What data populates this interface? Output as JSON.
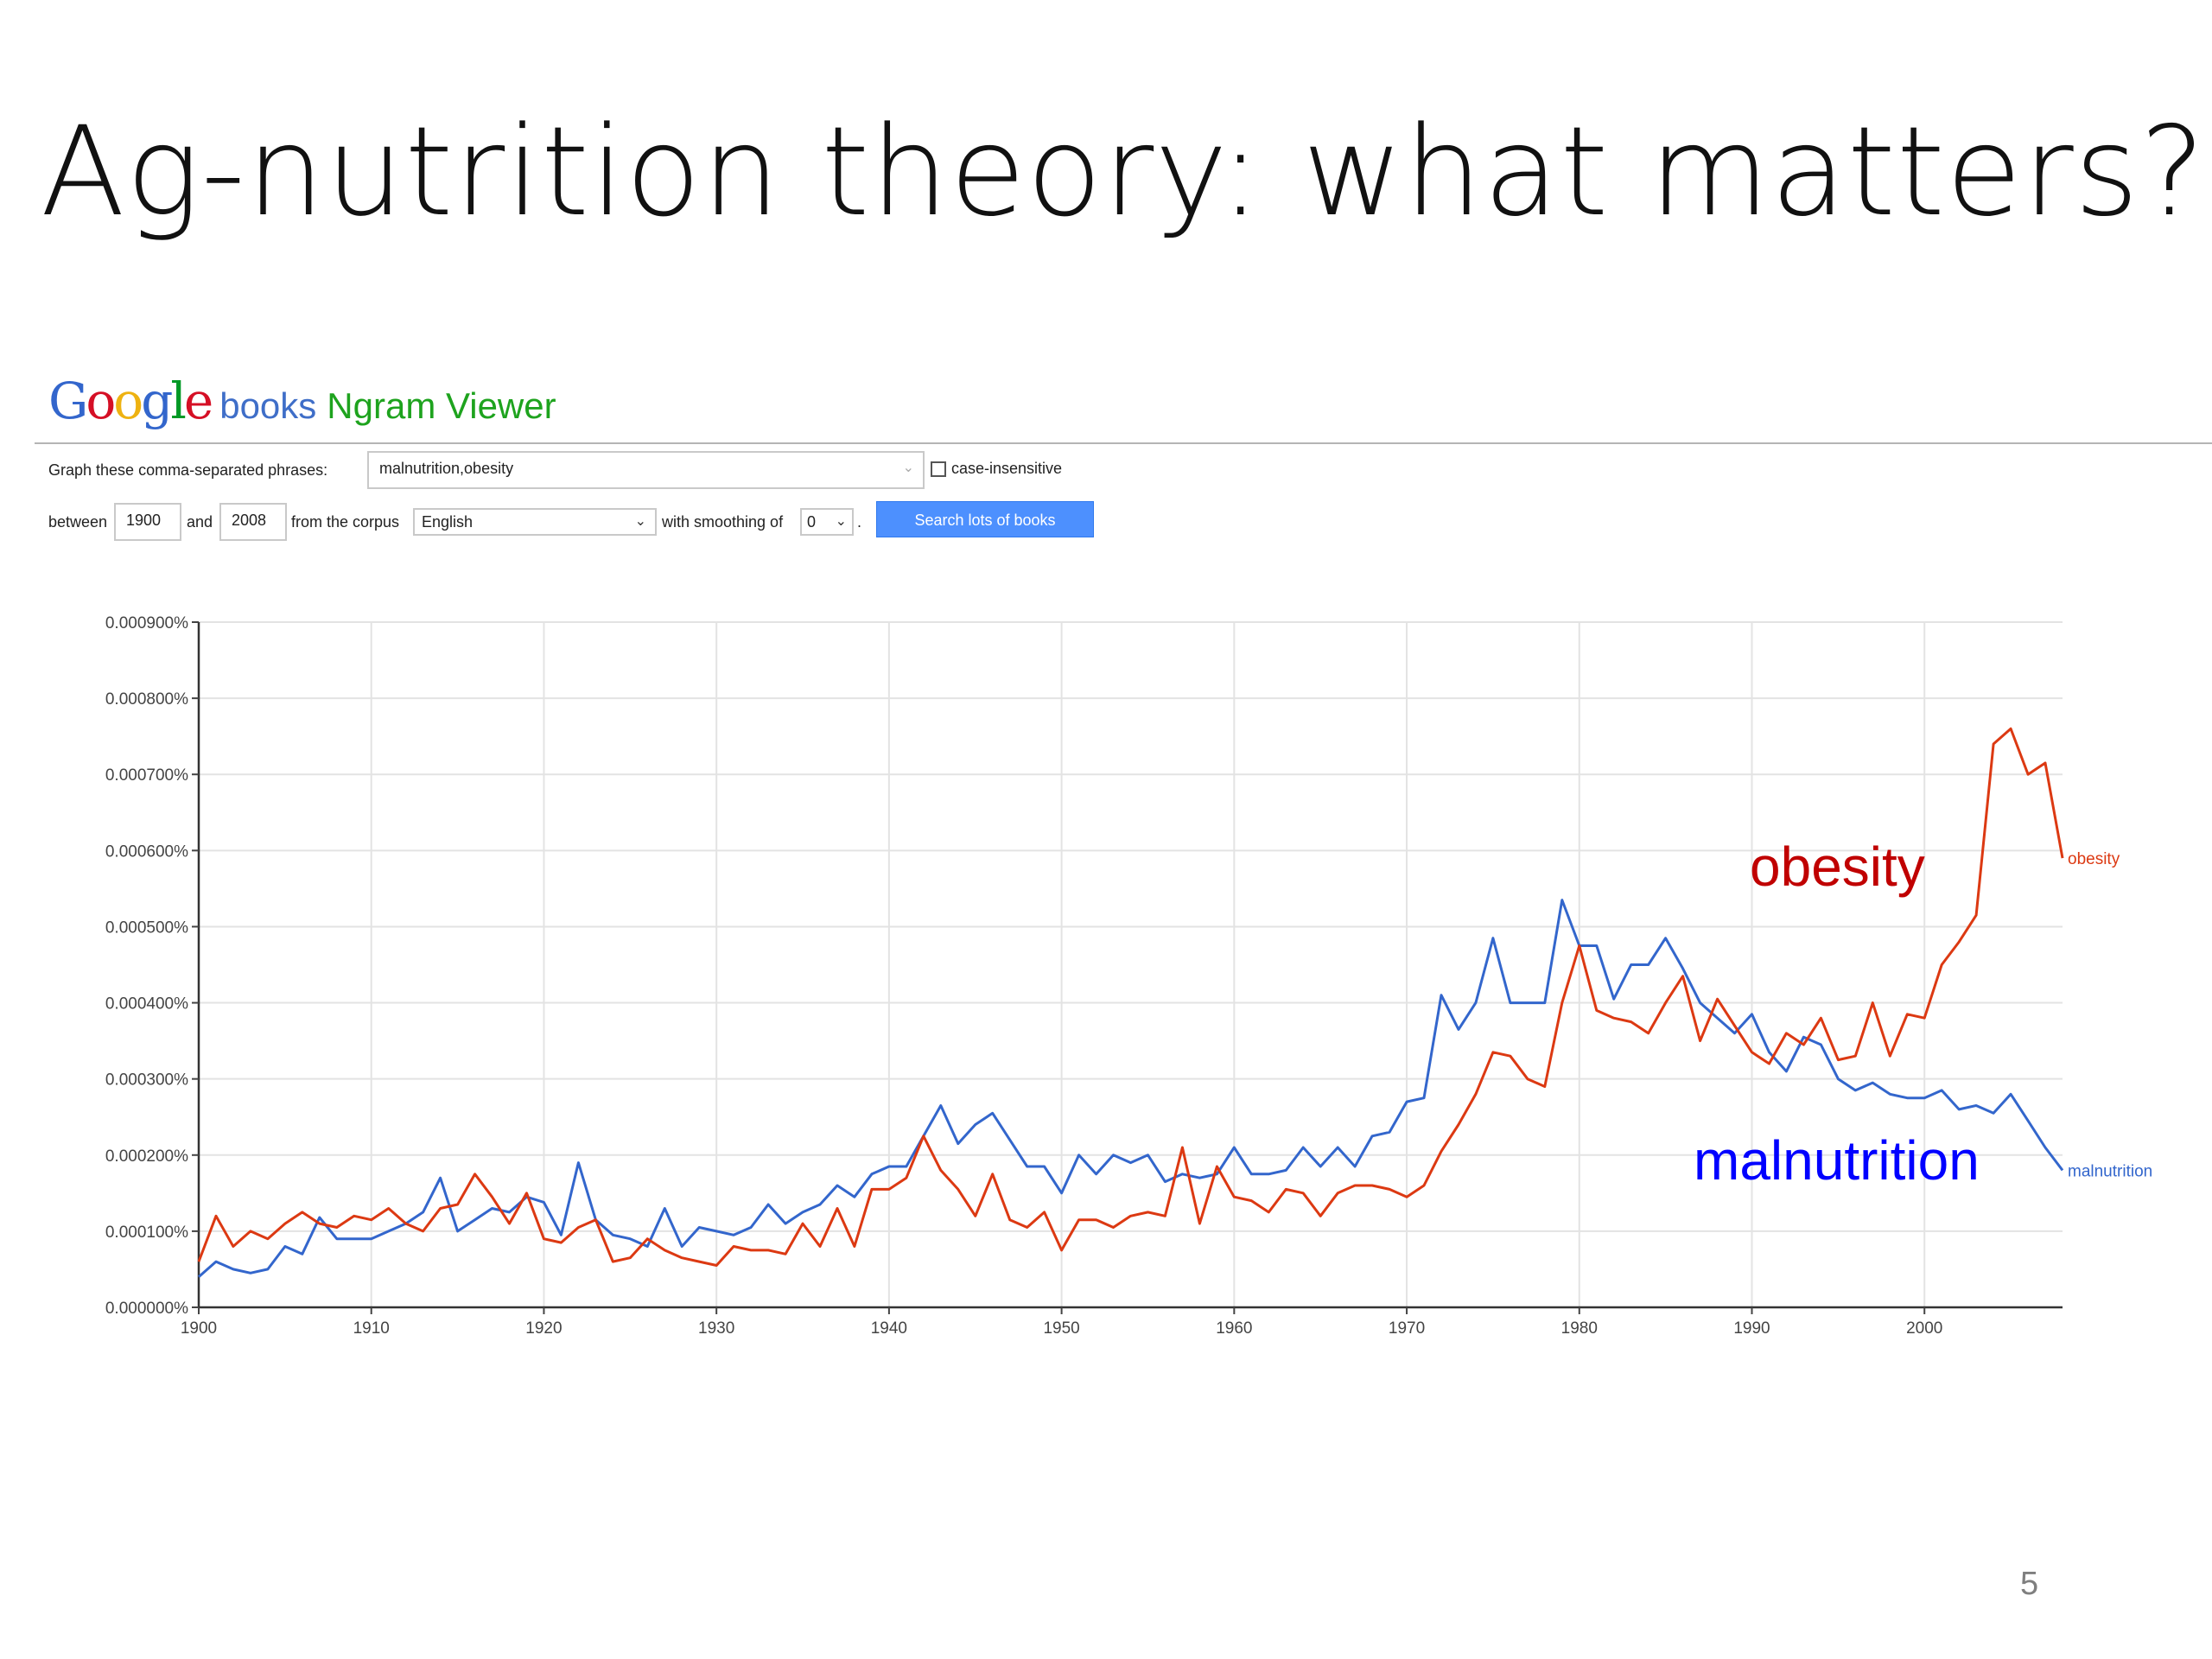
{
  "slide": {
    "title": "Ag-nutrition theory: what matters?",
    "page_number": "5"
  },
  "header": {
    "logo_google": [
      "G",
      "o",
      "o",
      "g",
      "l",
      "e"
    ],
    "logo_colors": [
      "#3366cc",
      "#d50f25",
      "#eeb211",
      "#3366cc",
      "#009925",
      "#d50f25"
    ],
    "logo_books": "books",
    "logo_ngram": "Ngram Viewer"
  },
  "form": {
    "phrases_label": "Graph these comma-separated phrases:",
    "phrases_value": "malnutrition,obesity",
    "case_insensitive_label": "case-insensitive",
    "between_label": "between",
    "start_year": "1900",
    "and_label": "and",
    "end_year": "2008",
    "corpus_label": "from the corpus",
    "corpus_value": "English",
    "smoothing_label": "with smoothing of",
    "smoothing_value": "0",
    "period": ".",
    "search_button": "Search lots of books"
  },
  "colors": {
    "obesity": "#dc3912",
    "malnutrition": "#3366cc",
    "obesity_annotation": "#c00000",
    "malnutrition_annotation": "#0000ff"
  },
  "chart_data": {
    "type": "line",
    "x_tick_labels": [
      "1900",
      "1910",
      "1920",
      "1930",
      "1940",
      "1950",
      "1960",
      "1970",
      "1980",
      "1990",
      "2000"
    ],
    "y_tick_labels": [
      "0.000000%",
      "0.000100%",
      "0.000200%",
      "0.000300%",
      "0.000400%",
      "0.000500%",
      "0.000600%",
      "0.000700%",
      "0.000800%",
      "0.000900%"
    ],
    "xlim": [
      1900,
      2008
    ],
    "ylim": [
      0,
      0.0009
    ],
    "y_unit": "%",
    "grid": true,
    "x": [
      1900,
      1901,
      1902,
      1903,
      1904,
      1905,
      1906,
      1907,
      1908,
      1909,
      1910,
      1911,
      1912,
      1913,
      1914,
      1915,
      1916,
      1917,
      1918,
      1919,
      1920,
      1921,
      1922,
      1923,
      1924,
      1925,
      1926,
      1927,
      1928,
      1929,
      1930,
      1931,
      1932,
      1933,
      1934,
      1935,
      1936,
      1937,
      1938,
      1939,
      1940,
      1941,
      1942,
      1943,
      1944,
      1945,
      1946,
      1947,
      1948,
      1949,
      1950,
      1951,
      1952,
      1953,
      1954,
      1955,
      1956,
      1957,
      1958,
      1959,
      1960,
      1961,
      1962,
      1963,
      1964,
      1965,
      1966,
      1967,
      1968,
      1969,
      1970,
      1971,
      1972,
      1973,
      1974,
      1975,
      1976,
      1977,
      1978,
      1979,
      1980,
      1981,
      1982,
      1983,
      1984,
      1985,
      1986,
      1987,
      1988,
      1989,
      1990,
      1991,
      1992,
      1993,
      1994,
      1995,
      1996,
      1997,
      1998,
      1999,
      2000,
      2001,
      2002,
      2003,
      2004,
      2005,
      2006,
      2007,
      2008
    ],
    "series": [
      {
        "name": "malnutrition",
        "values": [
          4e-05,
          6e-05,
          5e-05,
          4.5e-05,
          5e-05,
          8e-05,
          7e-05,
          0.000118,
          9e-05,
          9e-05,
          9e-05,
          0.0001,
          0.00011,
          0.000125,
          0.00017,
          0.0001,
          0.000115,
          0.00013,
          0.000125,
          0.000145,
          0.000138,
          9.5e-05,
          0.00019,
          0.000115,
          9.5e-05,
          9e-05,
          8e-05,
          0.00013,
          8e-05,
          0.000105,
          0.0001,
          9.5e-05,
          0.000105,
          0.000135,
          0.00011,
          0.000125,
          0.000135,
          0.00016,
          0.000145,
          0.000175,
          0.000185,
          0.000185,
          0.000225,
          0.000265,
          0.000215,
          0.00024,
          0.000255,
          0.00022,
          0.000185,
          0.000185,
          0.00015,
          0.0002,
          0.000175,
          0.0002,
          0.00019,
          0.0002,
          0.000165,
          0.000175,
          0.00017,
          0.000175,
          0.00021,
          0.000175,
          0.000175,
          0.00018,
          0.00021,
          0.000185,
          0.00021,
          0.000185,
          0.000225,
          0.00023,
          0.00027,
          0.000275,
          0.00041,
          0.000365,
          0.0004,
          0.000485,
          0.0004,
          0.0004,
          0.0004,
          0.000535,
          0.000475,
          0.000475,
          0.000405,
          0.00045,
          0.00045,
          0.000485,
          0.000445,
          0.0004,
          0.00038,
          0.00036,
          0.000385,
          0.000335,
          0.00031,
          0.000355,
          0.000345,
          0.0003,
          0.000285,
          0.000295,
          0.00028,
          0.000275,
          0.000275,
          0.000285,
          0.00026,
          0.000265,
          0.000255,
          0.00028,
          0.000245,
          0.00021,
          0.00018
        ]
      },
      {
        "name": "obesity",
        "values": [
          6e-05,
          0.00012,
          8e-05,
          0.0001,
          9e-05,
          0.00011,
          0.000125,
          0.00011,
          0.000105,
          0.00012,
          0.000115,
          0.00013,
          0.00011,
          0.0001,
          0.00013,
          0.000135,
          0.000175,
          0.000145,
          0.00011,
          0.00015,
          9e-05,
          8.5e-05,
          0.000105,
          0.000115,
          6e-05,
          6.5e-05,
          9e-05,
          7.5e-05,
          6.5e-05,
          6e-05,
          5.5e-05,
          8e-05,
          7.5e-05,
          7.5e-05,
          7e-05,
          0.00011,
          8e-05,
          0.00013,
          8e-05,
          0.000155,
          0.000155,
          0.00017,
          0.000225,
          0.00018,
          0.000155,
          0.00012,
          0.000175,
          0.000115,
          0.000105,
          0.000125,
          7.5e-05,
          0.000115,
          0.000115,
          0.000105,
          0.00012,
          0.000125,
          0.00012,
          0.00021,
          0.00011,
          0.000185,
          0.000145,
          0.00014,
          0.000125,
          0.000155,
          0.00015,
          0.00012,
          0.00015,
          0.00016,
          0.00016,
          0.000155,
          0.000145,
          0.00016,
          0.000205,
          0.00024,
          0.00028,
          0.000335,
          0.00033,
          0.0003,
          0.00029,
          0.0004,
          0.000475,
          0.00039,
          0.00038,
          0.000375,
          0.00036,
          0.0004,
          0.000435,
          0.00035,
          0.000405,
          0.00037,
          0.000335,
          0.00032,
          0.00036,
          0.000345,
          0.00038,
          0.000325,
          0.00033,
          0.0004,
          0.00033,
          0.000385,
          0.00038,
          0.00045,
          0.00048,
          0.000515,
          0.00074,
          0.00076,
          0.0007,
          0.000715,
          0.00059
        ]
      }
    ],
    "line_end_labels": [
      "obesity",
      "malnutrition"
    ],
    "annotations": [
      "obesity",
      "malnutrition"
    ]
  }
}
